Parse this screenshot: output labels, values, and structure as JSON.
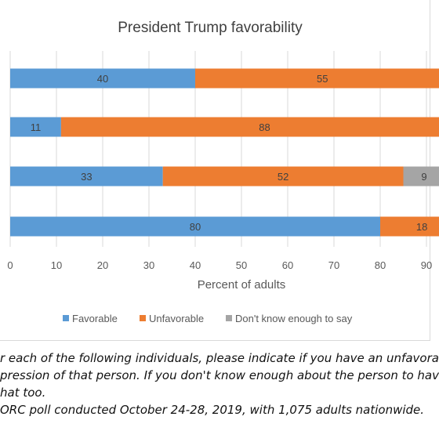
{
  "chart_data": {
    "type": "bar",
    "orientation": "horizontal",
    "stacked": true,
    "title": "President Trump favorability",
    "xlabel": "Percent of adults",
    "ylabel": "",
    "xlim": [
      0,
      100
    ],
    "xticks": [
      "0",
      "10",
      "20",
      "30",
      "40",
      "50",
      "60",
      "70",
      "80",
      "90"
    ],
    "grid": true,
    "legend_position": "bottom",
    "categories": [
      "",
      "",
      "",
      ""
    ],
    "series": [
      {
        "name": "Favorable",
        "color": "#5b9bd5",
        "values": [
          40,
          11,
          33,
          80
        ]
      },
      {
        "name": "Unfavorable",
        "color": "#ed7d31",
        "values": [
          55,
          88,
          52,
          18
        ]
      },
      {
        "name": "Don't know enough to say",
        "color": "#a5a5a5",
        "values": [
          null,
          null,
          9,
          null
        ]
      }
    ]
  },
  "notes": {
    "line1": "r each of the following individuals, please indicate if you have an unfavora",
    "line2": "pression of that person. If you don't know enough about the person to hav",
    "line3": "hat too.",
    "line4": "ORC poll conducted October 24-28, 2019, with 1,075 adults nationwide."
  }
}
